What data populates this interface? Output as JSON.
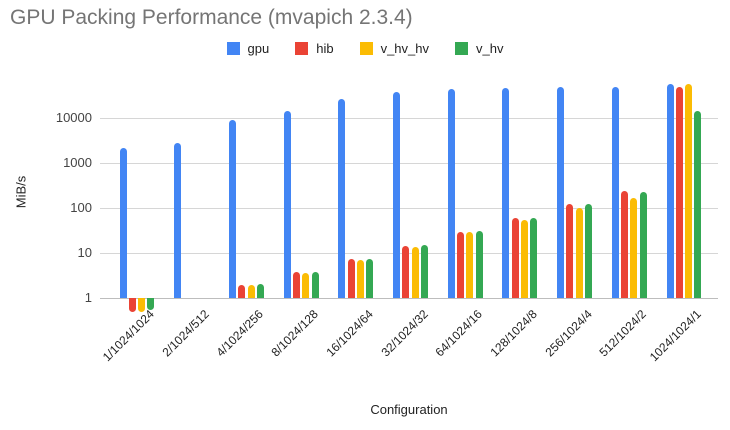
{
  "title": "GPU Packing Performance (mvapich 2.3.4)",
  "chart_data": {
    "type": "bar",
    "title": "GPU Packing Performance (mvapich 2.3.4)",
    "xlabel": "Configuration",
    "ylabel": "MiB/s",
    "y_scale": "log10",
    "y_ticks": [
      1,
      10,
      100,
      1000,
      10000
    ],
    "ylim": [
      0.4,
      60000
    ],
    "grid": "horizontal",
    "legend_position": "top",
    "categories": [
      "1/1024/1024",
      "2/1024/512",
      "4/1024/256",
      "8/1024/128",
      "16/1024/64",
      "32/1024/32",
      "64/1024/16",
      "128/1024/8",
      "256/1024/4",
      "512/1024/2",
      "1024/1024/1"
    ],
    "series": [
      {
        "name": "gpu",
        "color": "#4285F4",
        "values": [
          2200,
          2750,
          9000,
          14000,
          26000,
          38000,
          45000,
          47000,
          48000,
          49000,
          57000
        ]
      },
      {
        "name": "hib",
        "color": "#EA4335",
        "values": [
          0.5,
          null,
          1.9,
          3.7,
          7.2,
          14,
          30,
          60,
          120,
          240,
          48000
        ]
      },
      {
        "name": "v_hv_hv",
        "color": "#FBBC04",
        "values": [
          0.5,
          null,
          1.9,
          3.6,
          7.0,
          13.5,
          29,
          55,
          100,
          165,
          58000
        ]
      },
      {
        "name": "v_hv",
        "color": "#34A853",
        "values": [
          0.55,
          null,
          2.0,
          3.8,
          7.3,
          15,
          31,
          60,
          125,
          228,
          14000
        ]
      }
    ]
  }
}
